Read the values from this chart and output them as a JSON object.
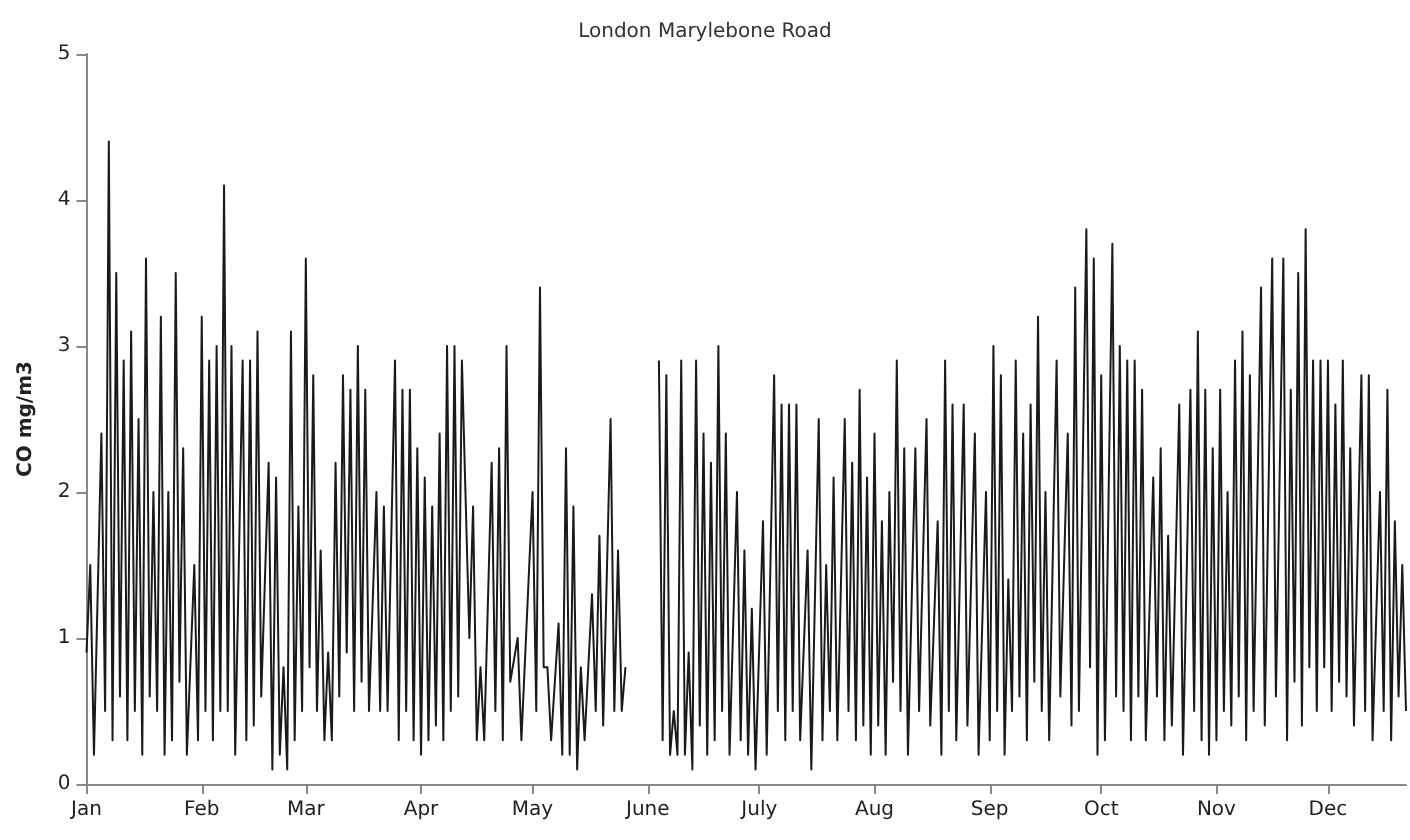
{
  "chart_data": {
    "type": "line",
    "title": "London Marylebone Road",
    "ylabel": "CO mg/m3",
    "x": [
      "--01-01",
      "--01-02",
      "--01-03",
      "--01-05",
      "--01-06",
      "--01-07",
      "--01-08",
      "--01-09",
      "--01-10",
      "--01-11",
      "--01-12",
      "--01-13",
      "--01-14",
      "--01-15",
      "--01-16",
      "--01-17",
      "--01-18",
      "--01-19",
      "--01-20",
      "--01-21",
      "--01-22",
      "--01-23",
      "--01-24",
      "--01-25",
      "--01-26",
      "--01-27",
      "--01-28",
      "--01-30",
      "--01-31",
      "--02-01",
      "--02-02",
      "--02-03",
      "--02-04",
      "--02-05",
      "--02-06",
      "--02-07",
      "--02-08",
      "--02-09",
      "--02-10",
      "--02-12",
      "--02-13",
      "--02-14",
      "--02-15",
      "--02-16",
      "--02-17",
      "--02-19",
      "--02-20",
      "--02-21",
      "--02-22",
      "--02-23",
      "--02-24",
      "--02-25",
      "--02-26",
      "--02-27",
      "--02-28",
      "--03-01",
      "--03-02",
      "--03-03",
      "--03-04",
      "--03-05",
      "--03-06",
      "--03-07",
      "--03-08",
      "--03-09",
      "--03-10",
      "--03-11",
      "--03-12",
      "--03-13",
      "--03-14",
      "--03-15",
      "--03-16",
      "--03-17",
      "--03-18",
      "--03-20",
      "--03-21",
      "--03-22",
      "--03-23",
      "--03-25",
      "--03-26",
      "--03-27",
      "--03-28",
      "--03-29",
      "--03-30",
      "--03-31",
      "--04-01",
      "--04-02",
      "--04-03",
      "--04-04",
      "--04-05",
      "--04-06",
      "--04-07",
      "--04-08",
      "--04-09",
      "--04-10",
      "--04-11",
      "--04-12",
      "--04-14",
      "--04-15",
      "--04-16",
      "--04-17",
      "--04-18",
      "--04-20",
      "--04-21",
      "--04-22",
      "--04-23",
      "--04-24",
      "--04-25",
      "--04-27",
      "--04-28",
      "--05-01",
      "--05-02",
      "--05-03",
      "--05-04",
      "--05-05",
      "--05-06",
      "--05-08",
      "--05-09",
      "--05-10",
      "--05-11",
      "--05-12",
      "--05-13",
      "--05-14",
      "--05-15",
      "--05-17",
      "--05-18",
      "--05-19",
      "--05-20",
      "--05-22",
      "--05-23",
      "--05-24",
      "--05-25",
      "--05-26",
      "--05-30",
      "--06-04",
      "--06-05",
      "--06-06",
      "--06-07",
      "--06-08",
      "--06-09",
      "--06-10",
      "--06-11",
      "--06-12",
      "--06-13",
      "--06-14",
      "--06-15",
      "--06-16",
      "--06-17",
      "--06-18",
      "--06-19",
      "--06-20",
      "--06-21",
      "--06-22",
      "--06-23",
      "--06-25",
      "--06-26",
      "--06-27",
      "--06-28",
      "--06-29",
      "--06-30",
      "--07-02",
      "--07-03",
      "--07-05",
      "--07-06",
      "--07-07",
      "--07-08",
      "--07-09",
      "--07-10",
      "--07-11",
      "--07-12",
      "--07-14",
      "--07-15",
      "--07-17",
      "--07-18",
      "--07-19",
      "--07-20",
      "--07-21",
      "--07-22",
      "--07-24",
      "--07-25",
      "--07-26",
      "--07-27",
      "--07-28",
      "--07-29",
      "--07-30",
      "--07-31",
      "--08-01",
      "--08-02",
      "--08-03",
      "--08-04",
      "--08-05",
      "--08-06",
      "--08-07",
      "--08-08",
      "--08-09",
      "--08-10",
      "--08-12",
      "--08-13",
      "--08-15",
      "--08-16",
      "--08-18",
      "--08-19",
      "--08-20",
      "--08-21",
      "--08-22",
      "--08-23",
      "--08-25",
      "--08-26",
      "--08-28",
      "--08-29",
      "--08-31",
      "--09-01",
      "--09-02",
      "--09-03",
      "--09-04",
      "--09-05",
      "--09-06",
      "--09-07",
      "--09-08",
      "--09-09",
      "--09-10",
      "--09-11",
      "--09-12",
      "--09-13",
      "--09-14",
      "--09-15",
      "--09-16",
      "--09-17",
      "--09-19",
      "--09-20",
      "--09-22",
      "--09-23",
      "--09-24",
      "--09-25",
      "--09-27",
      "--09-28",
      "--09-29",
      "--09-30",
      "--10-01",
      "--10-02",
      "--10-04",
      "--10-05",
      "--10-06",
      "--10-07",
      "--10-08",
      "--10-09",
      "--10-10",
      "--10-11",
      "--10-12",
      "--10-13",
      "--10-15",
      "--10-16",
      "--10-17",
      "--10-18",
      "--10-19",
      "--10-20",
      "--10-22",
      "--10-23",
      "--10-25",
      "--10-26",
      "--10-27",
      "--10-28",
      "--10-29",
      "--10-30",
      "--10-31",
      "--11-01",
      "--11-02",
      "--11-03",
      "--11-04",
      "--11-05",
      "--11-06",
      "--11-07",
      "--11-08",
      "--11-09",
      "--11-10",
      "--11-11",
      "--11-13",
      "--11-14",
      "--11-16",
      "--11-17",
      "--11-19",
      "--11-20",
      "--11-21",
      "--11-22",
      "--11-23",
      "--11-24",
      "--11-25",
      "--11-26",
      "--11-27",
      "--11-28",
      "--11-29",
      "--11-30",
      "--12-01",
      "--12-02",
      "--12-03",
      "--12-04",
      "--12-05",
      "--12-06",
      "--12-07",
      "--12-08",
      "--12-10",
      "--12-11",
      "--12-12",
      "--12-13",
      "--12-15",
      "--12-16",
      "--12-17",
      "--12-18",
      "--12-19",
      "--12-20",
      "--12-21",
      "--12-22"
    ],
    "values": [
      0.9,
      1.5,
      0.2,
      2.4,
      0.5,
      4.4,
      0.3,
      3.5,
      0.6,
      2.9,
      0.3,
      3.1,
      0.5,
      2.5,
      0.2,
      3.6,
      0.6,
      2.0,
      0.5,
      3.2,
      0.2,
      2.0,
      0.3,
      3.5,
      0.7,
      2.3,
      0.2,
      1.5,
      0.3,
      3.2,
      0.5,
      2.9,
      0.3,
      3.0,
      0.5,
      4.1,
      0.5,
      3.0,
      0.2,
      2.9,
      0.3,
      2.9,
      0.4,
      3.1,
      0.6,
      2.2,
      0.1,
      2.1,
      0.2,
      0.8,
      0.1,
      3.1,
      0.3,
      1.9,
      0.5,
      3.6,
      0.8,
      2.8,
      0.5,
      1.6,
      0.3,
      0.9,
      0.3,
      2.2,
      0.6,
      2.8,
      0.9,
      2.7,
      0.5,
      3.0,
      0.7,
      2.7,
      0.5,
      2.0,
      0.5,
      1.9,
      0.5,
      2.9,
      0.3,
      2.7,
      0.5,
      2.7,
      0.3,
      2.3,
      0.2,
      2.1,
      0.3,
      1.9,
      0.4,
      2.4,
      0.3,
      3.0,
      0.5,
      3.0,
      0.6,
      2.9,
      1.0,
      1.9,
      0.3,
      0.8,
      0.3,
      2.2,
      0.5,
      2.3,
      0.3,
      3.0,
      0.7,
      1.0,
      0.3,
      2.0,
      0.5,
      3.4,
      0.8,
      0.8,
      0.3,
      1.1,
      0.2,
      2.3,
      0.2,
      1.9,
      0.1,
      0.8,
      0.3,
      1.3,
      0.5,
      1.7,
      0.4,
      2.5,
      0.5,
      1.6,
      0.5,
      0.8,
      null,
      2.9,
      0.3,
      2.8,
      0.2,
      0.5,
      0.2,
      2.9,
      0.2,
      0.9,
      0.1,
      2.9,
      0.4,
      2.4,
      0.2,
      2.2,
      0.3,
      3.0,
      0.5,
      2.4,
      0.2,
      2.0,
      0.3,
      1.6,
      0.2,
      1.2,
      0.1,
      1.8,
      0.2,
      2.8,
      0.5,
      2.6,
      0.3,
      2.6,
      0.5,
      2.6,
      0.3,
      1.6,
      0.1,
      2.5,
      0.3,
      1.5,
      0.5,
      2.1,
      0.3,
      2.5,
      0.5,
      2.2,
      0.3,
      2.7,
      0.4,
      2.1,
      0.2,
      2.4,
      0.4,
      1.8,
      0.2,
      2.0,
      0.7,
      2.9,
      0.5,
      2.3,
      0.2,
      2.3,
      0.5,
      2.5,
      0.4,
      1.8,
      0.2,
      2.9,
      0.5,
      2.6,
      0.3,
      2.6,
      0.4,
      2.4,
      0.2,
      2.0,
      0.3,
      3.0,
      0.5,
      2.8,
      0.2,
      1.4,
      0.5,
      2.9,
      0.6,
      2.4,
      0.3,
      2.6,
      0.7,
      3.2,
      0.5,
      2.0,
      0.3,
      2.9,
      0.6,
      2.4,
      0.4,
      3.4,
      0.5,
      3.8,
      0.8,
      3.6,
      0.2,
      2.8,
      0.3,
      3.7,
      0.6,
      3.0,
      0.5,
      2.9,
      0.3,
      2.9,
      0.6,
      2.7,
      0.3,
      2.1,
      0.6,
      2.3,
      0.3,
      1.7,
      0.4,
      2.6,
      0.2,
      2.7,
      0.5,
      3.1,
      0.3,
      2.7,
      0.2,
      2.3,
      0.3,
      2.7,
      0.5,
      2.0,
      0.4,
      2.9,
      0.6,
      3.1,
      0.3,
      2.8,
      0.5,
      3.4,
      0.4,
      3.6,
      0.6,
      3.6,
      0.3,
      2.7,
      0.7,
      3.5,
      0.4,
      3.8,
      0.8,
      2.9,
      0.5,
      2.9,
      0.8,
      2.9,
      0.5,
      2.6,
      0.7,
      2.9,
      0.6,
      2.3,
      0.4,
      2.8,
      0.5,
      2.8,
      0.3,
      2.0,
      0.5,
      2.7,
      0.3,
      1.8,
      0.6,
      1.5,
      0.5
    ],
    "color": "#1a1a1a",
    "line_style": "solid",
    "marker": "none",
    "grid": false,
    "xlim": [
      "--01-01",
      "--12-22"
    ],
    "xticks": [
      {
        "value": "--01-01",
        "label": "Jan"
      },
      {
        "value": "--02-01",
        "label": "Feb"
      },
      {
        "value": "--03-01",
        "label": "Mar"
      },
      {
        "value": "--04-01",
        "label": "Apr"
      },
      {
        "value": "--05-01",
        "label": "May"
      },
      {
        "value": "--06-01",
        "label": "June"
      },
      {
        "value": "--07-01",
        "label": "July"
      },
      {
        "value": "--08-01",
        "label": "Aug"
      },
      {
        "value": "--09-01",
        "label": "Sep"
      },
      {
        "value": "--10-01",
        "label": "Oct"
      },
      {
        "value": "--11-01",
        "label": "Nov"
      },
      {
        "value": "--12-01",
        "label": "Dec"
      }
    ],
    "ylim": [
      0,
      5
    ],
    "yticks": [
      0,
      1,
      2,
      3,
      4,
      5
    ]
  }
}
